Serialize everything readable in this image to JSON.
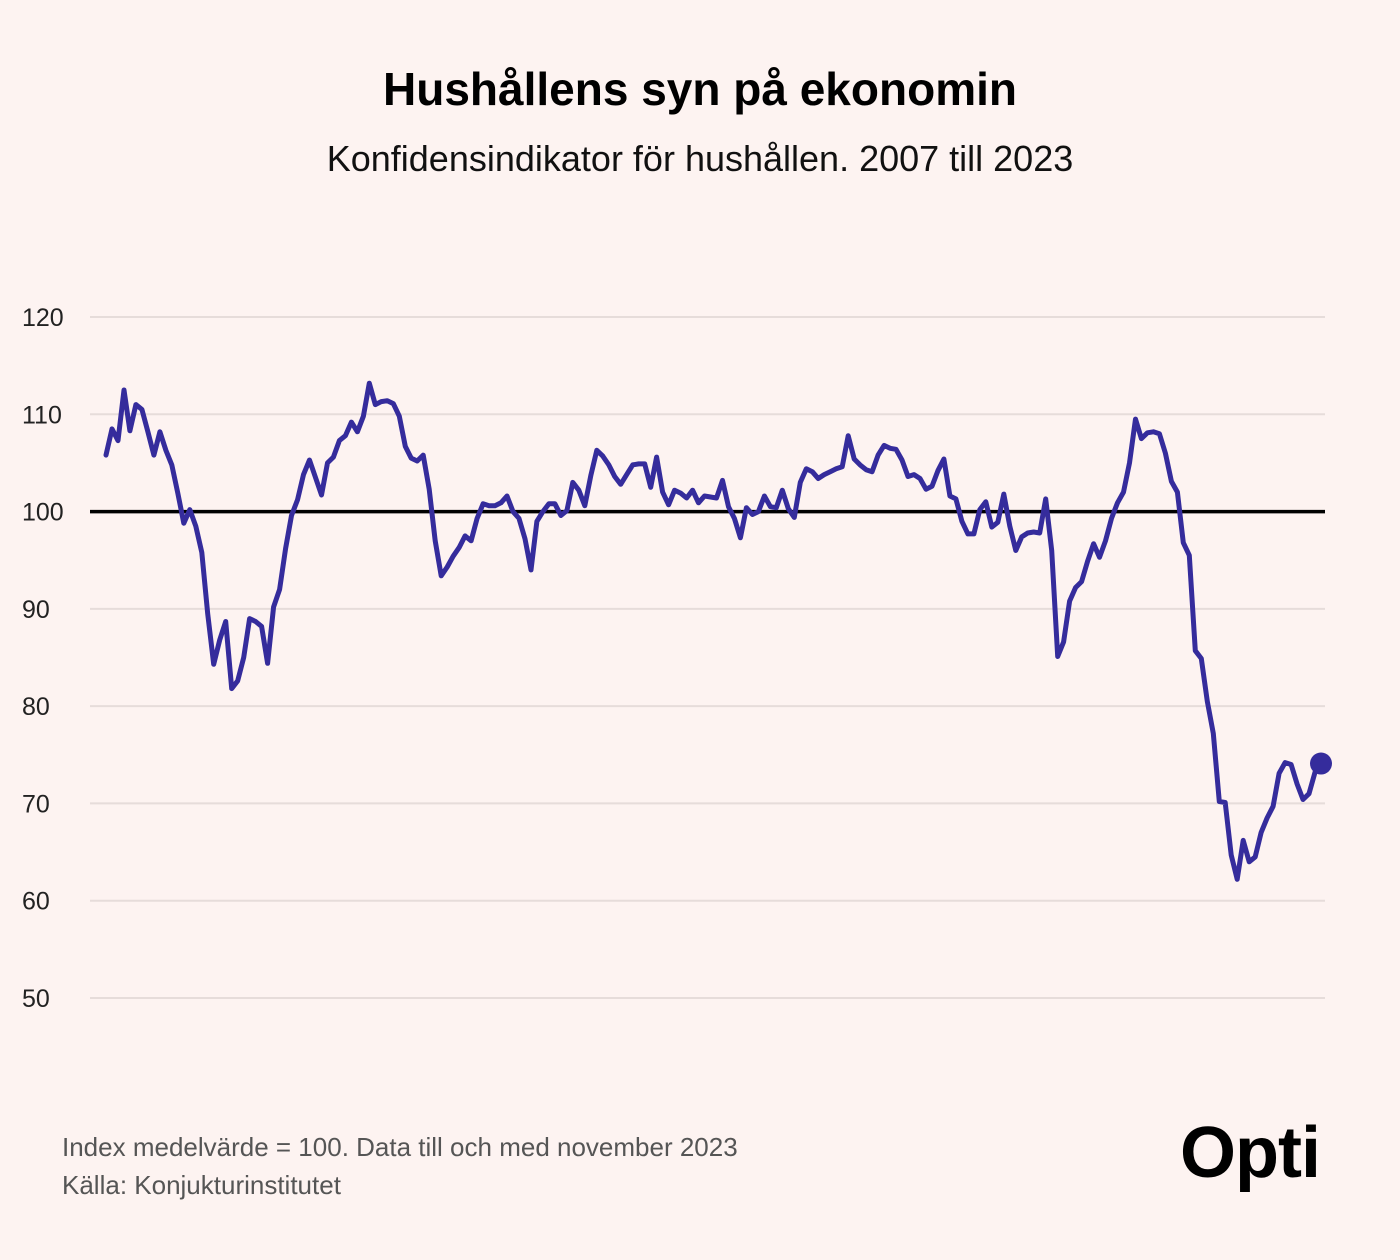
{
  "title": "Hushållens syn på ekonomin",
  "subtitle": "Konfidensindikator för hushållen. 2007 till 2023",
  "footnote": "Index medelvärde = 100. Data till och med november 2023",
  "source": "Källa: Konjukturinstitutet",
  "logo": "Opti",
  "colors": {
    "line": "#352c9c",
    "reference_line": "#000000",
    "grid": "#e6dcda",
    "background": "#fdf3f1"
  },
  "chart_data": {
    "type": "line",
    "title": "Hushållens syn på ekonomin",
    "subtitle": "Konfidensindikator för hushållen. 2007 till 2023",
    "xlabel": "",
    "ylabel": "",
    "x_range": [
      "2007-01",
      "2023-11"
    ],
    "ylim": [
      50,
      120
    ],
    "yticks": [
      "120",
      "110",
      "100",
      "90",
      "80",
      "70",
      "60",
      "50"
    ],
    "reference_line": 100,
    "grid": true,
    "legend": "none",
    "series": [
      {
        "values": [
          105.8,
          108.5,
          107.3,
          112.5,
          108.3,
          111.0,
          110.5,
          108.2,
          105.8,
          108.2,
          106.3,
          104.8,
          101.9,
          98.8,
          100.2,
          98.5,
          95.8,
          89.5,
          84.3,
          86.8,
          88.7,
          81.8,
          82.6,
          85.0,
          89.0,
          88.7,
          88.2,
          84.4,
          90.2,
          92.0,
          96.2,
          99.6,
          101.2,
          103.8,
          105.3,
          103.5,
          101.7,
          105.0,
          105.6,
          107.3,
          107.8,
          109.2,
          108.2,
          109.8,
          113.2,
          111.0,
          111.3,
          111.4,
          111.1,
          109.8,
          106.7,
          105.5,
          105.2,
          105.8,
          102.3,
          97.0,
          93.4,
          94.3,
          95.4,
          96.3,
          97.5,
          97.0,
          99.3,
          100.8,
          100.6,
          100.6,
          100.9,
          101.6,
          100.0,
          99.3,
          97.2,
          94.0,
          99.0,
          100.0,
          100.8,
          100.8,
          99.6,
          100.1,
          103.0,
          102.2,
          100.6,
          103.7,
          106.3,
          105.7,
          104.8,
          103.6,
          102.8,
          103.8,
          104.8,
          104.9,
          104.9,
          102.5,
          105.6,
          102.0,
          100.7,
          102.2,
          101.9,
          101.4,
          102.2,
          100.9,
          101.6,
          101.5,
          101.4,
          103.2,
          100.5,
          99.3,
          97.3,
          100.4,
          99.7,
          100.0,
          101.6,
          100.5,
          100.4,
          102.2,
          100.3,
          99.4,
          103.0,
          104.4,
          104.1,
          103.4,
          103.8,
          104.1,
          104.4,
          104.6,
          107.8,
          105.4,
          104.8,
          104.3,
          104.1,
          105.8,
          106.8,
          106.5,
          106.4,
          105.3,
          103.6,
          103.8,
          103.4,
          102.3,
          102.6,
          104.2,
          105.4,
          101.6,
          101.3,
          99.0,
          97.7,
          97.7,
          100.2,
          101.0,
          98.4,
          98.9,
          101.8,
          98.5,
          96.0,
          97.4,
          97.8,
          97.9,
          97.8,
          101.3,
          96.0,
          85.1,
          86.6,
          90.8,
          92.2,
          92.8,
          94.9,
          96.7,
          95.3,
          97.0,
          99.3,
          100.9,
          102.0,
          105.0,
          109.5,
          107.5,
          108.1,
          108.2,
          108.0,
          106.0,
          103.1,
          102.0,
          96.8,
          95.5,
          85.7,
          84.9,
          80.5,
          77.2,
          70.2,
          70.1,
          64.7,
          62.2,
          66.2,
          64.0,
          64.5,
          67.0,
          68.5,
          69.7,
          73.1,
          74.2,
          74.0,
          72.0,
          70.4,
          71.0,
          73.2,
          74.1
        ]
      }
    ],
    "last_point_marker": true
  }
}
